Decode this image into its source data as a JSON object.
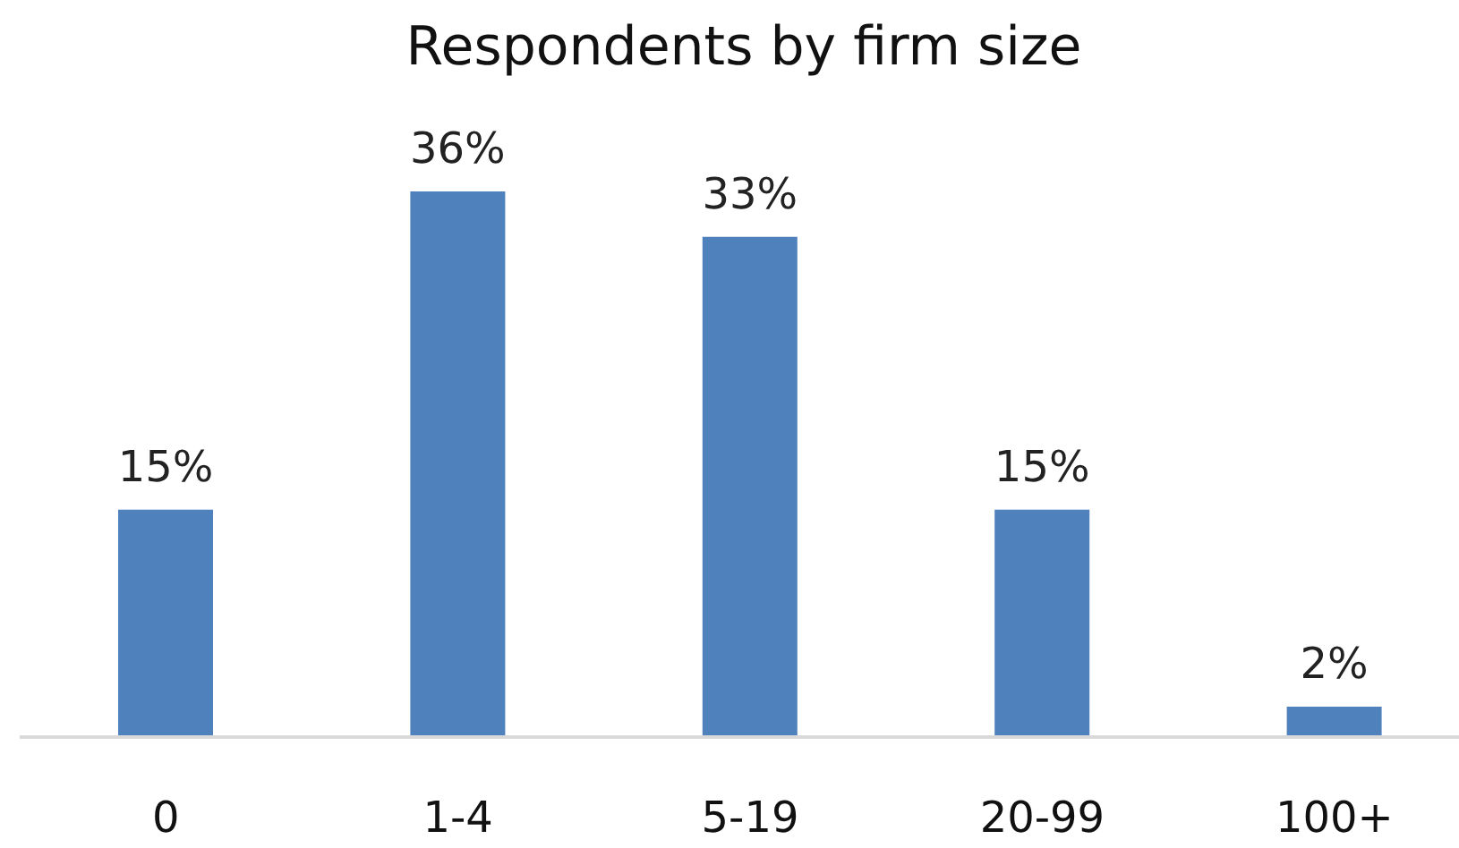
{
  "chart_data": {
    "type": "bar",
    "title": "Respondents by firm size",
    "categories": [
      "0",
      "1-4",
      "5-19",
      "20-99",
      "100+"
    ],
    "values": [
      15,
      36,
      33,
      15,
      2
    ],
    "value_labels": [
      "15%",
      "36%",
      "33%",
      "15%",
      "2%"
    ],
    "color": "#4f81bd",
    "grid": false
  }
}
